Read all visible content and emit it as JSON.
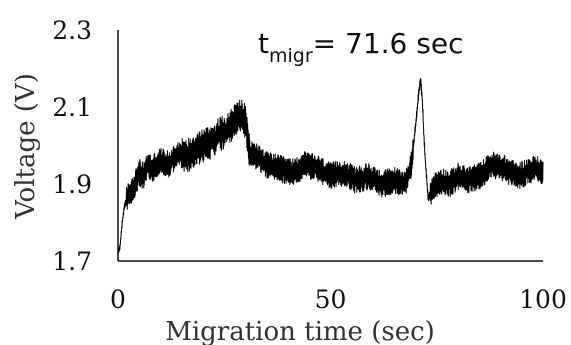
{
  "chart_data": {
    "type": "line",
    "title": "",
    "xlabel": "Migration time (sec)",
    "ylabel": "Voltage (V)",
    "xlim": [
      0,
      100
    ],
    "ylim": [
      1.7,
      2.3
    ],
    "x_ticks": [
      "0",
      "50",
      "100"
    ],
    "y_ticks": [
      "1.7",
      "1.9",
      "2.1",
      "2.3"
    ],
    "grid": false,
    "legend": "none",
    "annotation": {
      "main": "t",
      "subscript": "migr",
      "rest": "= 71.6 sec"
    },
    "series": [
      {
        "color": "#000000",
        "x": [
          0,
          0.5,
          1,
          1.5,
          2,
          3,
          4,
          5,
          6,
          7,
          8,
          10,
          12,
          14,
          16,
          18,
          20,
          22,
          24,
          26,
          27,
          28,
          29,
          30,
          31,
          33,
          35,
          38,
          41,
          44,
          47,
          50,
          53,
          56,
          59,
          62,
          65,
          67,
          68,
          69,
          70,
          70.8,
          71.2,
          71.6,
          72,
          72.5,
          73,
          74,
          76,
          78,
          80,
          82,
          85,
          88,
          91,
          94,
          96,
          98,
          100
        ],
        "y": [
          1.72,
          1.74,
          1.8,
          1.84,
          1.86,
          1.88,
          1.9,
          1.93,
          1.92,
          1.95,
          1.94,
          1.96,
          1.95,
          1.98,
          1.97,
          1.99,
          2.0,
          2.01,
          2.03,
          2.04,
          2.06,
          2.07,
          2.08,
          2.06,
          1.98,
          1.97,
          1.95,
          1.94,
          1.93,
          1.95,
          1.94,
          1.92,
          1.93,
          1.91,
          1.92,
          1.9,
          1.91,
          1.9,
          1.91,
          1.95,
          2.05,
          2.14,
          2.17,
          2.12,
          2.02,
          1.93,
          1.86,
          1.89,
          1.91,
          1.9,
          1.92,
          1.91,
          1.92,
          1.95,
          1.94,
          1.92,
          1.93,
          1.94,
          1.93
        ]
      }
    ]
  }
}
